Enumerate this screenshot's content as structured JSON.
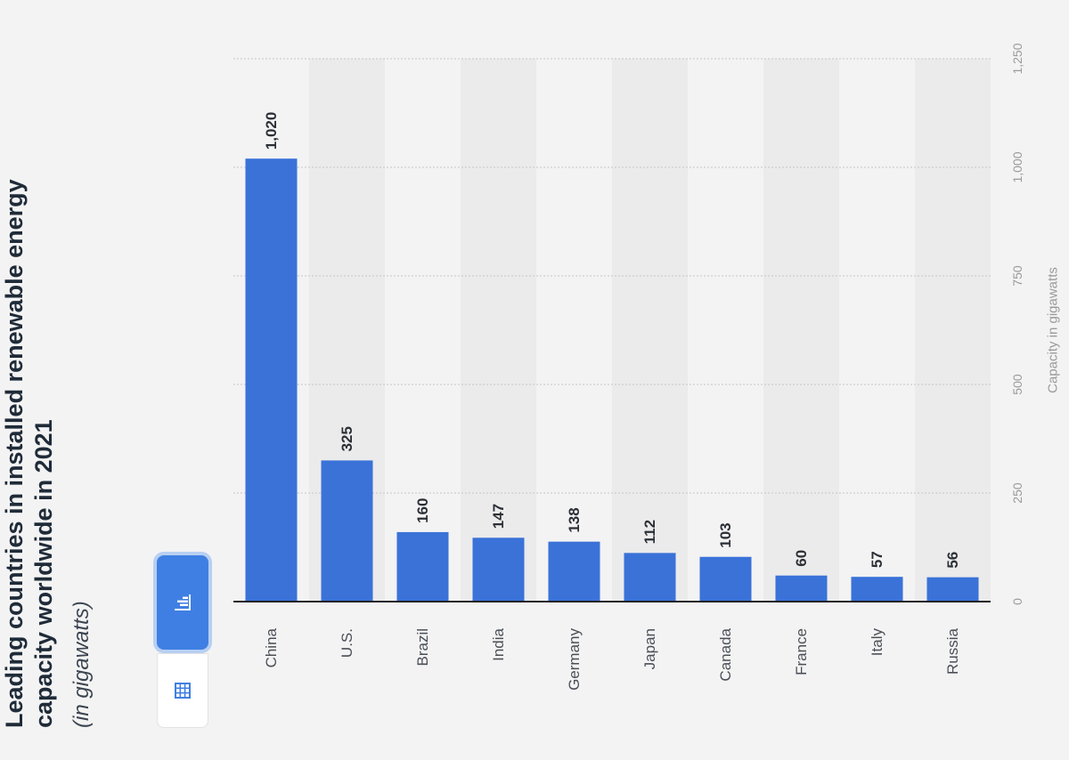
{
  "title": "Leading countries in installed renewable energy capacity worldwide in 2021",
  "title_lines": [
    "Leading countries in installed renewable energy",
    "capacity worldwide in 2021"
  ],
  "subtitle": "(in gigawatts)",
  "controls": {
    "chart_view_icon": "bar-chart-icon",
    "table_view_icon": "table-grid-icon",
    "active": "chart"
  },
  "colors": {
    "bar": "#3a72d8",
    "button_active": "#3f7fe3",
    "band": "#ebebeb",
    "background": "#f3f3f3"
  },
  "chart_data": {
    "type": "bar",
    "orientation": "vertical",
    "title": "Leading countries in installed renewable energy capacity worldwide in 2021",
    "subtitle": "(in gigawatts)",
    "categories": [
      "China",
      "U.S.",
      "Brazil",
      "India",
      "Germany",
      "Japan",
      "Canada",
      "France",
      "Italy",
      "Russia"
    ],
    "values": [
      1020,
      325,
      160,
      147,
      138,
      112,
      103,
      60,
      57,
      56
    ],
    "value_labels": [
      "1,020",
      "325",
      "160",
      "147",
      "138",
      "112",
      "103",
      "60",
      "57",
      "56"
    ],
    "ylabel": "Capacity in gigawatts",
    "xlabel": "",
    "ylim": [
      0,
      1250
    ],
    "yticks": [
      0,
      250,
      500,
      750,
      1000,
      1250
    ],
    "ytick_labels": [
      "0",
      "250",
      "500",
      "750",
      "1,000",
      "1,250"
    ],
    "grid": true,
    "legend": "none"
  }
}
